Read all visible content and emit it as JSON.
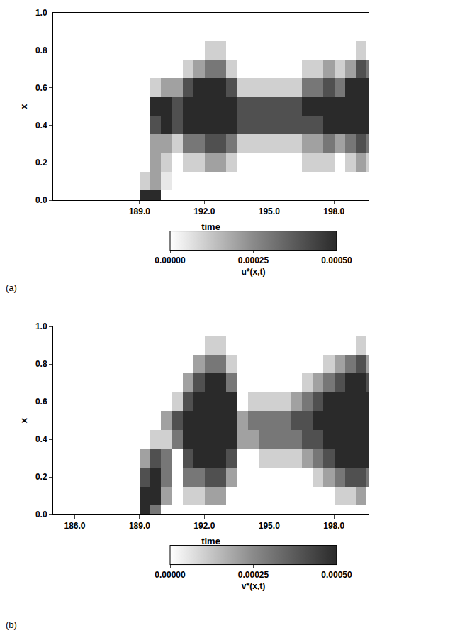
{
  "chart_data": [
    {
      "type": "heatmap",
      "label": "(a)",
      "x_label": "time",
      "y_label": "x",
      "x": [
        188.75,
        189.25,
        189.75,
        190.25,
        190.75,
        191.25,
        191.75,
        192.25,
        192.75,
        193.25,
        193.75,
        194.25,
        194.75,
        195.25,
        195.75,
        196.25,
        196.75,
        197.25,
        197.75,
        198.25,
        198.75,
        199.25,
        199.75
      ],
      "y": [
        0,
        0.1,
        0.2,
        0.3,
        0.4,
        0.5,
        0.6,
        0.7,
        0.8,
        0.9,
        1.0
      ],
      "z": [
        [
          0,
          0.0005,
          0.0005,
          0,
          0,
          0,
          0,
          0,
          0,
          0,
          0,
          0,
          0,
          0,
          0,
          0,
          0,
          0,
          0,
          0,
          0,
          0,
          0
        ],
        [
          0,
          0.0001,
          0.0002,
          5e-05,
          0,
          0,
          0,
          0,
          0,
          0,
          0,
          0,
          0,
          0,
          0,
          0,
          0,
          0,
          0,
          0,
          0,
          0,
          0
        ],
        [
          0,
          0,
          0.0002,
          0.0001,
          0,
          0.0001,
          0.0001,
          0.0002,
          0.0002,
          0.0001,
          0,
          0,
          0,
          0,
          0,
          0,
          0.0001,
          0.0001,
          0.0001,
          0,
          0.0001,
          0.0002,
          0.0001
        ],
        [
          0,
          0,
          0.0002,
          0.0002,
          0.0001,
          0.0003,
          0.0003,
          0.0004,
          0.0004,
          0.0003,
          0.0001,
          0.0001,
          0.0001,
          0.0001,
          0.0001,
          0.0001,
          0.0002,
          0.0002,
          0.0003,
          0.0002,
          0.0003,
          0.0004,
          0.0003
        ],
        [
          0,
          0,
          0.0004,
          0.0005,
          0.0004,
          0.0005,
          0.0005,
          0.0005,
          0.0005,
          0.0005,
          0.0004,
          0.0004,
          0.0004,
          0.0004,
          0.0004,
          0.0004,
          0.0004,
          0.0004,
          0.0005,
          0.0005,
          0.0005,
          0.0005,
          0.0005
        ],
        [
          0,
          0,
          0.0005,
          0.0005,
          0.0004,
          0.0005,
          0.0005,
          0.0005,
          0.0005,
          0.0005,
          0.0004,
          0.0004,
          0.0004,
          0.0004,
          0.0004,
          0.0004,
          0.0005,
          0.0005,
          0.0005,
          0.0005,
          0.0005,
          0.0005,
          0.0005
        ],
        [
          0,
          0,
          0.0001,
          0.0002,
          0.0002,
          0.0004,
          0.0005,
          0.0005,
          0.0005,
          0.0004,
          0.0001,
          0.0001,
          0.0001,
          0.0001,
          0.0001,
          0.0001,
          0.0003,
          0.0003,
          0.0004,
          0.0003,
          0.0005,
          0.0005,
          0.0005
        ],
        [
          0,
          0,
          0,
          0,
          0,
          0.0001,
          0.0002,
          0.0003,
          0.0003,
          0.0001,
          0,
          0,
          0,
          0,
          0,
          0,
          0.0001,
          0.0001,
          0.0002,
          0.0001,
          0.0002,
          0.0004,
          0.0003
        ],
        [
          0,
          0,
          0,
          0,
          0,
          0,
          0,
          0.0001,
          0.0001,
          0,
          0,
          0,
          0,
          0,
          0,
          0,
          0,
          0,
          0,
          0,
          0,
          0.0001,
          0
        ],
        [
          0,
          0,
          0,
          0,
          0,
          0,
          0,
          0,
          0,
          0,
          0,
          0,
          0,
          0,
          0,
          0,
          0,
          0,
          0,
          0,
          0,
          0,
          0
        ],
        [
          0,
          0,
          0,
          0,
          0,
          0,
          0,
          0,
          0,
          0,
          0,
          0,
          0,
          0,
          0,
          0,
          0,
          0,
          0,
          0,
          0,
          0,
          0
        ]
      ],
      "xlim": [
        185,
        199.6
      ],
      "ylim": [
        0,
        1
      ],
      "xticks": [
        {
          "value": 189,
          "label": "189.0"
        },
        {
          "value": 192,
          "label": "192.0"
        },
        {
          "value": 195,
          "label": "195.0"
        },
        {
          "value": 198,
          "label": "198.0"
        }
      ],
      "yticks": [
        {
          "value": 0,
          "label": "0.0"
        },
        0.2,
        0.4,
        0.6,
        0.8,
        {
          "value": 1,
          "label": "1.0"
        }
      ],
      "colorbar_label": "u*(x,t)",
      "zlim": [
        0,
        0.0005
      ],
      "zticks": [
        {
          "value": 0,
          "label": "0.00000"
        },
        0.00025,
        {
          "value": 0.0005,
          "label": "0.00050"
        }
      ],
      "grid": false
    },
    {
      "type": "heatmap",
      "label": "(b)",
      "x_label": "time",
      "y_label": "x",
      "x": [
        188.75,
        189.25,
        189.75,
        190.25,
        190.75,
        191.25,
        191.75,
        192.25,
        192.75,
        193.25,
        193.75,
        194.25,
        194.75,
        195.25,
        195.75,
        196.25,
        196.75,
        197.25,
        197.75,
        198.25,
        198.75,
        199.25,
        199.75
      ],
      "y": [
        0,
        0.1,
        0.2,
        0.3,
        0.4,
        0.5,
        0.6,
        0.7,
        0.8,
        0.9,
        1.0
      ],
      "z": [
        [
          0,
          0.0005,
          0.0003,
          0,
          0,
          0,
          0,
          0,
          0,
          0,
          0,
          0,
          0,
          0,
          0,
          0,
          0,
          0,
          0,
          0,
          0,
          0,
          0
        ],
        [
          0,
          0.0005,
          0.0005,
          0.0002,
          0,
          0.0001,
          0.0001,
          0.0002,
          0.0002,
          0,
          0,
          0,
          0,
          0,
          0,
          0,
          0,
          0,
          0,
          0.0001,
          0.0001,
          0.0002,
          0
        ],
        [
          0,
          0.0004,
          0.0005,
          0.0003,
          0,
          0.0003,
          0.0003,
          0.0004,
          0.0004,
          0.0002,
          0,
          0,
          0,
          0,
          0,
          0,
          0,
          0.0001,
          0.0002,
          0.0003,
          0.0004,
          0.0004,
          0.0003
        ],
        [
          0,
          0.0002,
          0.0004,
          0.0003,
          0,
          0.0004,
          0.0005,
          0.0005,
          0.0005,
          0.0004,
          0,
          0,
          0.0001,
          0.0001,
          0.0001,
          0.0001,
          0.0002,
          0.0003,
          0.0004,
          0.0005,
          0.0005,
          0.0005,
          0.0005
        ],
        [
          0,
          0,
          0.0001,
          0.0001,
          0.0003,
          0.0005,
          0.0005,
          0.0005,
          0.0005,
          0.0005,
          0.0002,
          0.0002,
          0.0003,
          0.0003,
          0.0003,
          0.0003,
          0.0004,
          0.0004,
          0.0005,
          0.0005,
          0.0005,
          0.0005,
          0.0005
        ],
        [
          0,
          0,
          0,
          0.0002,
          0.0004,
          0.0005,
          0.0005,
          0.0005,
          0.0005,
          0.0005,
          0.0002,
          0.0003,
          0.0003,
          0.0003,
          0.0003,
          0.0004,
          0.0004,
          0.0005,
          0.0005,
          0.0005,
          0.0005,
          0.0005,
          0.0005
        ],
        [
          0,
          0,
          0,
          0,
          0.0001,
          0.0004,
          0.0005,
          0.0005,
          0.0005,
          0.0005,
          0,
          0.0001,
          0.0001,
          0.0001,
          0.0001,
          0.0002,
          0.0003,
          0.0004,
          0.0005,
          0.0005,
          0.0005,
          0.0005,
          0.0005
        ],
        [
          0,
          0,
          0,
          0,
          0,
          0.0002,
          0.0004,
          0.0005,
          0.0005,
          0.0003,
          0,
          0,
          0,
          0,
          0,
          0,
          0.0001,
          0.0002,
          0.0003,
          0.0004,
          0.0005,
          0.0005,
          0.0004
        ],
        [
          0,
          0,
          0,
          0,
          0,
          0,
          0.0002,
          0.0003,
          0.0003,
          0.0001,
          0,
          0,
          0,
          0,
          0,
          0,
          0,
          0,
          0.0001,
          0.0002,
          0.0003,
          0.0004,
          0.0002
        ],
        [
          0,
          0,
          0,
          0,
          0,
          0,
          0,
          0.0001,
          0.0001,
          0,
          0,
          0,
          0,
          0,
          0,
          0,
          0,
          0,
          0,
          0,
          0,
          0.0001,
          0
        ],
        [
          0,
          0,
          0,
          0,
          0,
          0,
          0,
          0,
          0,
          0,
          0,
          0,
          0,
          0,
          0,
          0,
          0,
          0,
          0,
          0,
          0,
          0,
          0
        ]
      ],
      "xlim": [
        185,
        199.6
      ],
      "ylim": [
        0,
        1
      ],
      "xticks": [
        {
          "value": 186,
          "label": "186.0"
        },
        {
          "value": 189,
          "label": "189.0"
        },
        {
          "value": 192,
          "label": "192.0"
        },
        {
          "value": 195,
          "label": "195.0"
        },
        {
          "value": 198,
          "label": "198.0"
        }
      ],
      "yticks": [
        {
          "value": 0,
          "label": "0.0"
        },
        0.2,
        0.4,
        0.6,
        0.8,
        {
          "value": 1,
          "label": "1.0"
        }
      ],
      "colorbar_label": "v*(x,t)",
      "zlim": [
        0,
        0.0005
      ],
      "zticks": [
        {
          "value": 0,
          "label": "0.00000"
        },
        0.00025,
        {
          "value": 0.0005,
          "label": "0.00050"
        }
      ],
      "grid": false
    }
  ]
}
